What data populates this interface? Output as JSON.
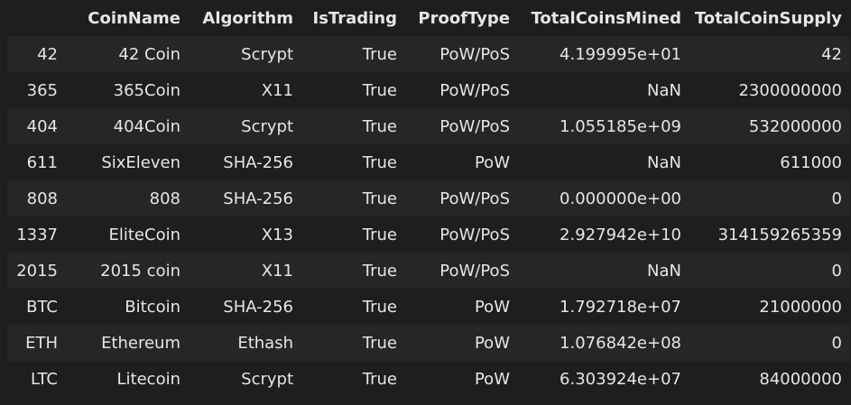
{
  "table": {
    "columns": [
      "",
      "CoinName",
      "Algorithm",
      "IsTrading",
      "ProofType",
      "TotalCoinsMined",
      "TotalCoinSupply"
    ],
    "rows": [
      {
        "index": "42",
        "CoinName": "42 Coin",
        "Algorithm": "Scrypt",
        "IsTrading": "True",
        "ProofType": "PoW/PoS",
        "TotalCoinsMined": "4.199995e+01",
        "TotalCoinSupply": "42"
      },
      {
        "index": "365",
        "CoinName": "365Coin",
        "Algorithm": "X11",
        "IsTrading": "True",
        "ProofType": "PoW/PoS",
        "TotalCoinsMined": "NaN",
        "TotalCoinSupply": "2300000000"
      },
      {
        "index": "404",
        "CoinName": "404Coin",
        "Algorithm": "Scrypt",
        "IsTrading": "True",
        "ProofType": "PoW/PoS",
        "TotalCoinsMined": "1.055185e+09",
        "TotalCoinSupply": "532000000"
      },
      {
        "index": "611",
        "CoinName": "SixEleven",
        "Algorithm": "SHA-256",
        "IsTrading": "True",
        "ProofType": "PoW",
        "TotalCoinsMined": "NaN",
        "TotalCoinSupply": "611000"
      },
      {
        "index": "808",
        "CoinName": "808",
        "Algorithm": "SHA-256",
        "IsTrading": "True",
        "ProofType": "PoW/PoS",
        "TotalCoinsMined": "0.000000e+00",
        "TotalCoinSupply": "0"
      },
      {
        "index": "1337",
        "CoinName": "EliteCoin",
        "Algorithm": "X13",
        "IsTrading": "True",
        "ProofType": "PoW/PoS",
        "TotalCoinsMined": "2.927942e+10",
        "TotalCoinSupply": "314159265359"
      },
      {
        "index": "2015",
        "CoinName": "2015 coin",
        "Algorithm": "X11",
        "IsTrading": "True",
        "ProofType": "PoW/PoS",
        "TotalCoinsMined": "NaN",
        "TotalCoinSupply": "0"
      },
      {
        "index": "BTC",
        "CoinName": "Bitcoin",
        "Algorithm": "SHA-256",
        "IsTrading": "True",
        "ProofType": "PoW",
        "TotalCoinsMined": "1.792718e+07",
        "TotalCoinSupply": "21000000"
      },
      {
        "index": "ETH",
        "CoinName": "Ethereum",
        "Algorithm": "Ethash",
        "IsTrading": "True",
        "ProofType": "PoW",
        "TotalCoinsMined": "1.076842e+08",
        "TotalCoinSupply": "0"
      },
      {
        "index": "LTC",
        "CoinName": "Litecoin",
        "Algorithm": "Scrypt",
        "IsTrading": "True",
        "ProofType": "PoW",
        "TotalCoinsMined": "6.303924e+07",
        "TotalCoinSupply": "84000000"
      }
    ]
  },
  "colors": {
    "background": "#1e1e1e",
    "stripe": "#262626",
    "text": "#e6e6e6"
  }
}
